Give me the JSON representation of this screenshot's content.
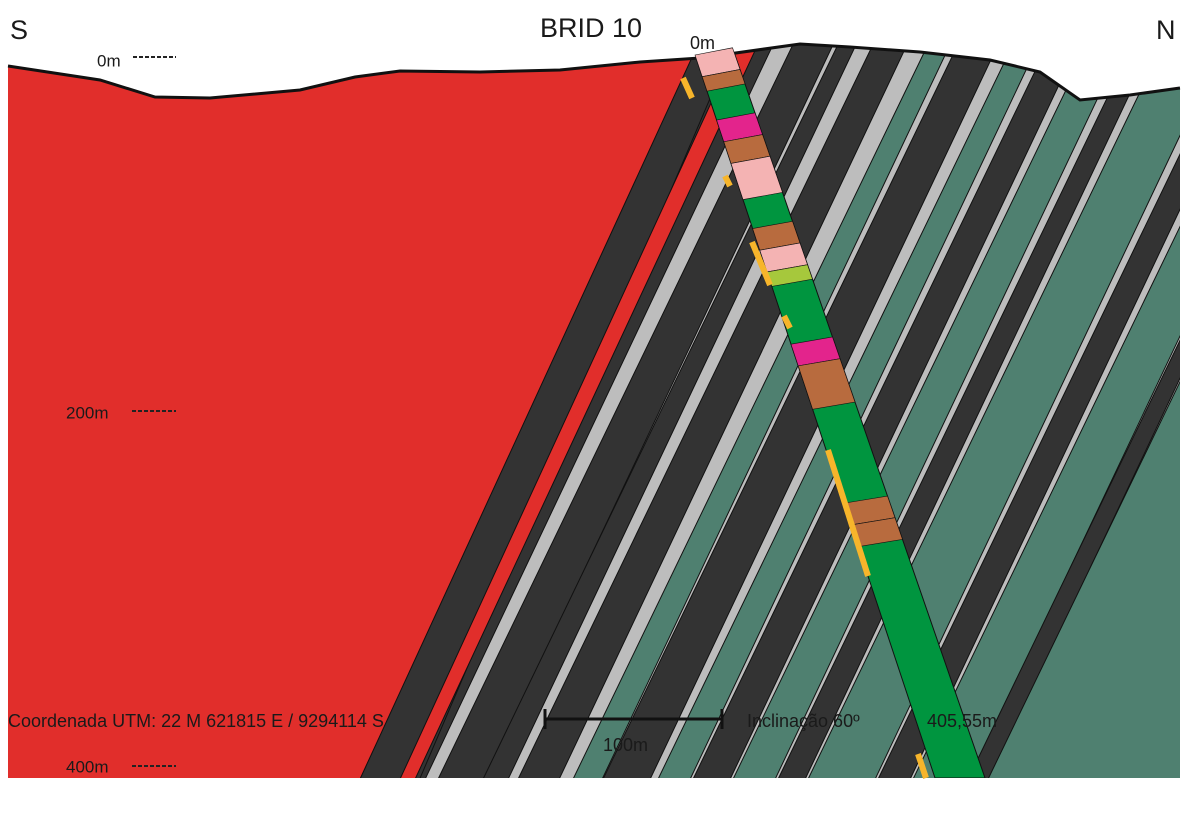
{
  "header": {
    "south": "S",
    "north": "N",
    "drillhole": "BRID 10",
    "collar_depth": "0m"
  },
  "depth_labels": [
    "0m",
    "200m",
    "400m"
  ],
  "footer": {
    "coordinates": "Coordenada UTM: 22 M 621815 E / 9294114 S",
    "scale": "100m",
    "inclination": "Inclinação 60º",
    "length": "405,55m"
  }
}
